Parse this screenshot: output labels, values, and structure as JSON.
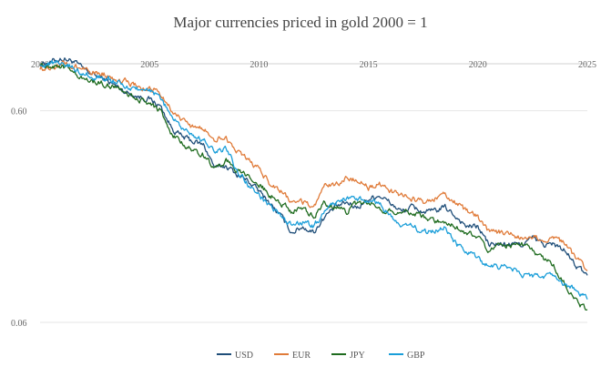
{
  "chart_data": {
    "type": "line",
    "title": "Major currencies priced in gold 2000 = 1",
    "xlabel": "",
    "ylabel": "",
    "y_scale": "log",
    "xlim": [
      2000,
      2025
    ],
    "ylim": [
      0.06,
      1.0
    ],
    "x_ticks": [
      {
        "value": 2000,
        "label": "2000"
      },
      {
        "value": 2005,
        "label": "2005"
      },
      {
        "value": 2010,
        "label": "2010"
      },
      {
        "value": 2015,
        "label": "2015"
      },
      {
        "value": 2020,
        "label": "2020"
      },
      {
        "value": 2025,
        "label": "2025"
      }
    ],
    "y_ticks": [
      {
        "value": 0.6,
        "label": "0.60"
      },
      {
        "value": 0.06,
        "label": "0.06"
      }
    ],
    "grid": "horizontal",
    "legend_position": "bottom",
    "x": [
      2000.0,
      2000.5,
      2001.0,
      2001.5,
      2002.0,
      2002.5,
      2003.0,
      2003.5,
      2004.0,
      2004.5,
      2005.0,
      2005.5,
      2006.0,
      2006.5,
      2007.0,
      2007.5,
      2008.0,
      2008.5,
      2009.0,
      2009.5,
      2010.0,
      2010.5,
      2011.0,
      2011.5,
      2012.0,
      2012.5,
      2013.0,
      2013.5,
      2014.0,
      2014.5,
      2015.0,
      2015.5,
      2016.0,
      2016.5,
      2017.0,
      2017.5,
      2018.0,
      2018.5,
      2019.0,
      2019.5,
      2020.0,
      2020.5,
      2021.0,
      2021.5,
      2022.0,
      2022.5,
      2023.0,
      2023.5,
      2024.0,
      2024.5,
      2025.0
    ],
    "series": [
      {
        "name": "USD",
        "color": "#1f4e79",
        "values": [
          1.0,
          1.02,
          1.06,
          1.03,
          0.94,
          0.88,
          0.84,
          0.78,
          0.73,
          0.7,
          0.68,
          0.63,
          0.5,
          0.45,
          0.43,
          0.41,
          0.32,
          0.33,
          0.3,
          0.28,
          0.25,
          0.22,
          0.19,
          0.16,
          0.17,
          0.16,
          0.19,
          0.21,
          0.22,
          0.21,
          0.23,
          0.24,
          0.22,
          0.2,
          0.21,
          0.2,
          0.2,
          0.21,
          0.19,
          0.17,
          0.17,
          0.14,
          0.14,
          0.14,
          0.14,
          0.15,
          0.14,
          0.14,
          0.13,
          0.11,
          0.1
        ]
      },
      {
        "name": "EUR",
        "color": "#e07b39",
        "values": [
          0.96,
          0.96,
          1.0,
          0.96,
          0.96,
          0.91,
          0.89,
          0.85,
          0.82,
          0.77,
          0.76,
          0.72,
          0.61,
          0.54,
          0.5,
          0.49,
          0.44,
          0.45,
          0.38,
          0.35,
          0.32,
          0.27,
          0.25,
          0.22,
          0.22,
          0.21,
          0.26,
          0.27,
          0.29,
          0.28,
          0.26,
          0.27,
          0.25,
          0.24,
          0.23,
          0.22,
          0.23,
          0.24,
          0.22,
          0.2,
          0.19,
          0.16,
          0.16,
          0.16,
          0.15,
          0.15,
          0.15,
          0.15,
          0.14,
          0.12,
          0.105
        ]
      },
      {
        "name": "JPY",
        "color": "#1e6b1e",
        "values": [
          1.0,
          0.98,
          0.98,
          0.92,
          0.84,
          0.82,
          0.8,
          0.77,
          0.72,
          0.68,
          0.65,
          0.6,
          0.46,
          0.42,
          0.39,
          0.37,
          0.32,
          0.35,
          0.31,
          0.29,
          0.27,
          0.24,
          0.22,
          0.2,
          0.21,
          0.19,
          0.22,
          0.21,
          0.2,
          0.22,
          0.22,
          0.21,
          0.2,
          0.2,
          0.2,
          0.19,
          0.18,
          0.18,
          0.17,
          0.16,
          0.15,
          0.13,
          0.14,
          0.14,
          0.14,
          0.13,
          0.12,
          0.11,
          0.09,
          0.075,
          0.069
        ]
      },
      {
        "name": "GBP",
        "color": "#1a9ed9",
        "values": [
          1.0,
          1.0,
          1.02,
          0.96,
          0.9,
          0.86,
          0.86,
          0.82,
          0.77,
          0.76,
          0.74,
          0.69,
          0.56,
          0.5,
          0.46,
          0.43,
          0.38,
          0.4,
          0.31,
          0.27,
          0.24,
          0.21,
          0.19,
          0.17,
          0.18,
          0.17,
          0.2,
          0.22,
          0.23,
          0.23,
          0.22,
          0.22,
          0.19,
          0.17,
          0.17,
          0.16,
          0.16,
          0.17,
          0.14,
          0.13,
          0.12,
          0.11,
          0.11,
          0.11,
          0.1,
          0.1,
          0.1,
          0.1,
          0.09,
          0.085,
          0.077
        ]
      }
    ]
  }
}
